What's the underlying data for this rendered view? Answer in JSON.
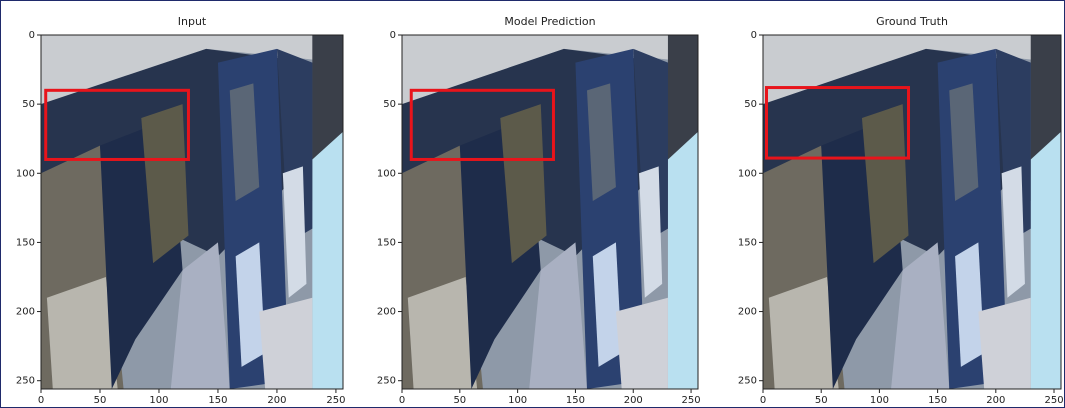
{
  "chart_data": [
    {
      "type": "image",
      "title": "Input",
      "xlim": [
        0,
        256
      ],
      "ylim": [
        256,
        0
      ],
      "xticks": [
        0,
        50,
        100,
        150,
        200,
        250
      ],
      "yticks": [
        0,
        50,
        100,
        150,
        200,
        250
      ],
      "box": {
        "x": [
          4,
          125
        ],
        "y": [
          40,
          90
        ],
        "color": "#e8141b"
      }
    },
    {
      "type": "image",
      "title": "Model Prediction",
      "xlim": [
        0,
        256
      ],
      "ylim": [
        256,
        0
      ],
      "xticks": [
        0,
        50,
        100,
        150,
        200,
        250
      ],
      "yticks": [
        0,
        50,
        100,
        150,
        200,
        250
      ],
      "box": {
        "x": [
          8,
          131
        ],
        "y": [
          40,
          90
        ],
        "color": "#e8141b"
      }
    },
    {
      "type": "image",
      "title": "Ground Truth",
      "xlim": [
        0,
        256
      ],
      "ylim": [
        256,
        0
      ],
      "xticks": [
        0,
        50,
        100,
        150,
        200,
        250
      ],
      "yticks": [
        0,
        50,
        100,
        150,
        200,
        250
      ],
      "box": {
        "x": [
          3,
          125
        ],
        "y": [
          38,
          89
        ],
        "color": "#e8141b"
      }
    }
  ]
}
